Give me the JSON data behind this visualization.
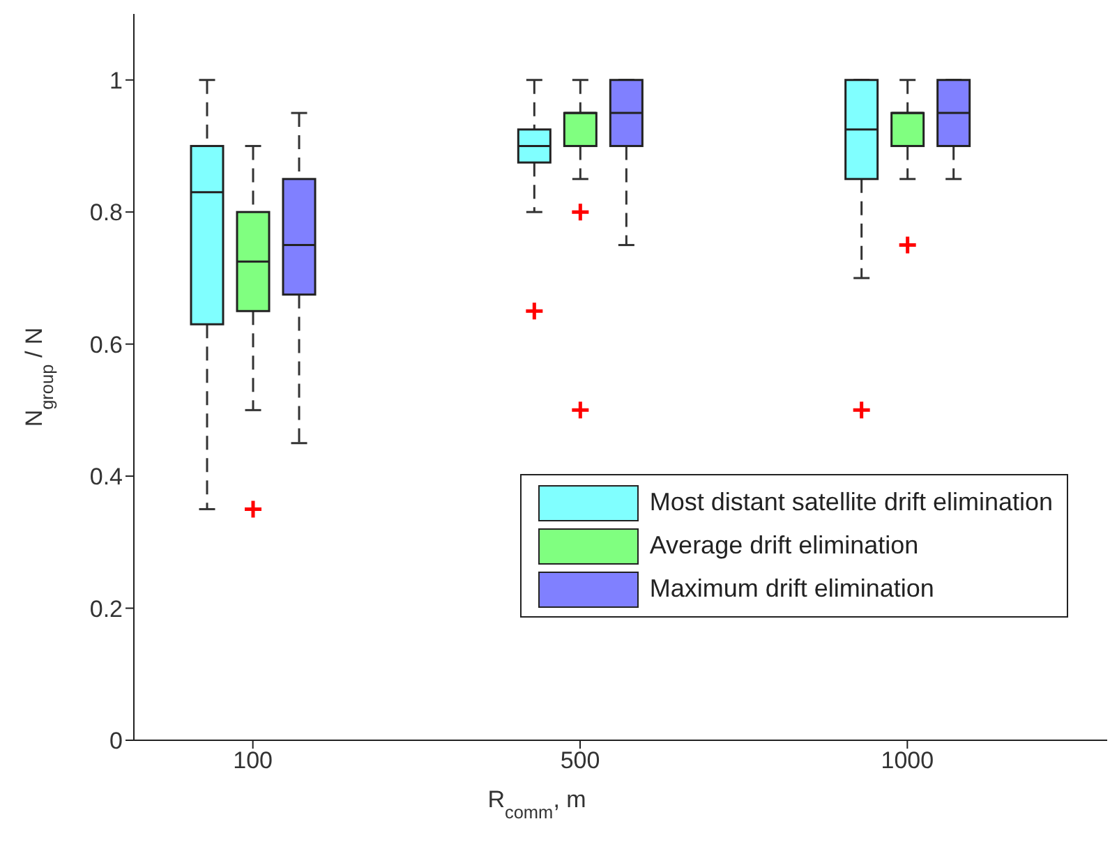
{
  "chart_data": {
    "type": "box",
    "xlabel": "R$_{comm}$, m",
    "ylabel": "N$_{group}$ / N",
    "categories": [
      "100",
      "500",
      "1000"
    ],
    "ylim": [
      0,
      1.1
    ],
    "yticks": [
      0,
      0.2,
      0.4,
      0.6,
      0.8,
      1
    ],
    "legend": "bottom right",
    "line_style": "dashed",
    "series": [
      {
        "name": "Most distant satellite drift elimination",
        "color": "#80ffff",
        "boxes": [
          {
            "low": 0.35,
            "q1": 0.63,
            "median": 0.83,
            "q3": 0.9,
            "high": 1.0
          },
          {
            "low": 0.8,
            "q1": 0.875,
            "median": 0.9,
            "q3": 0.925,
            "high": 1.0,
            "outliers": [
              0.65
            ]
          },
          {
            "low": 0.7,
            "q1": 0.85,
            "median": 0.925,
            "q3": 1.0,
            "high": 1.0,
            "outliers": [
              0.5
            ]
          }
        ]
      },
      {
        "name": "Average drift elimination",
        "color": "#80ff80",
        "boxes": [
          {
            "low": 0.5,
            "q1": 0.65,
            "median": 0.725,
            "q3": 0.8,
            "high": 0.9,
            "outliers": [
              0.35
            ]
          },
          {
            "low": 0.85,
            "q1": 0.9,
            "median": 0.95,
            "q3": 0.95,
            "high": 1.0,
            "outliers": [
              0.8,
              0.5
            ]
          },
          {
            "low": 0.85,
            "q1": 0.9,
            "median": 0.95,
            "q3": 0.95,
            "high": 1.0,
            "outliers": [
              0.75
            ]
          }
        ]
      },
      {
        "name": "Maximum drift elimination",
        "color": "#8080ff",
        "boxes": [
          {
            "low": 0.45,
            "q1": 0.675,
            "median": 0.75,
            "q3": 0.85,
            "high": 0.95
          },
          {
            "low": 0.75,
            "q1": 0.9,
            "median": 0.95,
            "q3": 1.0,
            "high": 1.0
          },
          {
            "low": 0.85,
            "q1": 0.9,
            "median": 0.95,
            "q3": 1.0,
            "high": 1.0
          }
        ]
      }
    ]
  }
}
